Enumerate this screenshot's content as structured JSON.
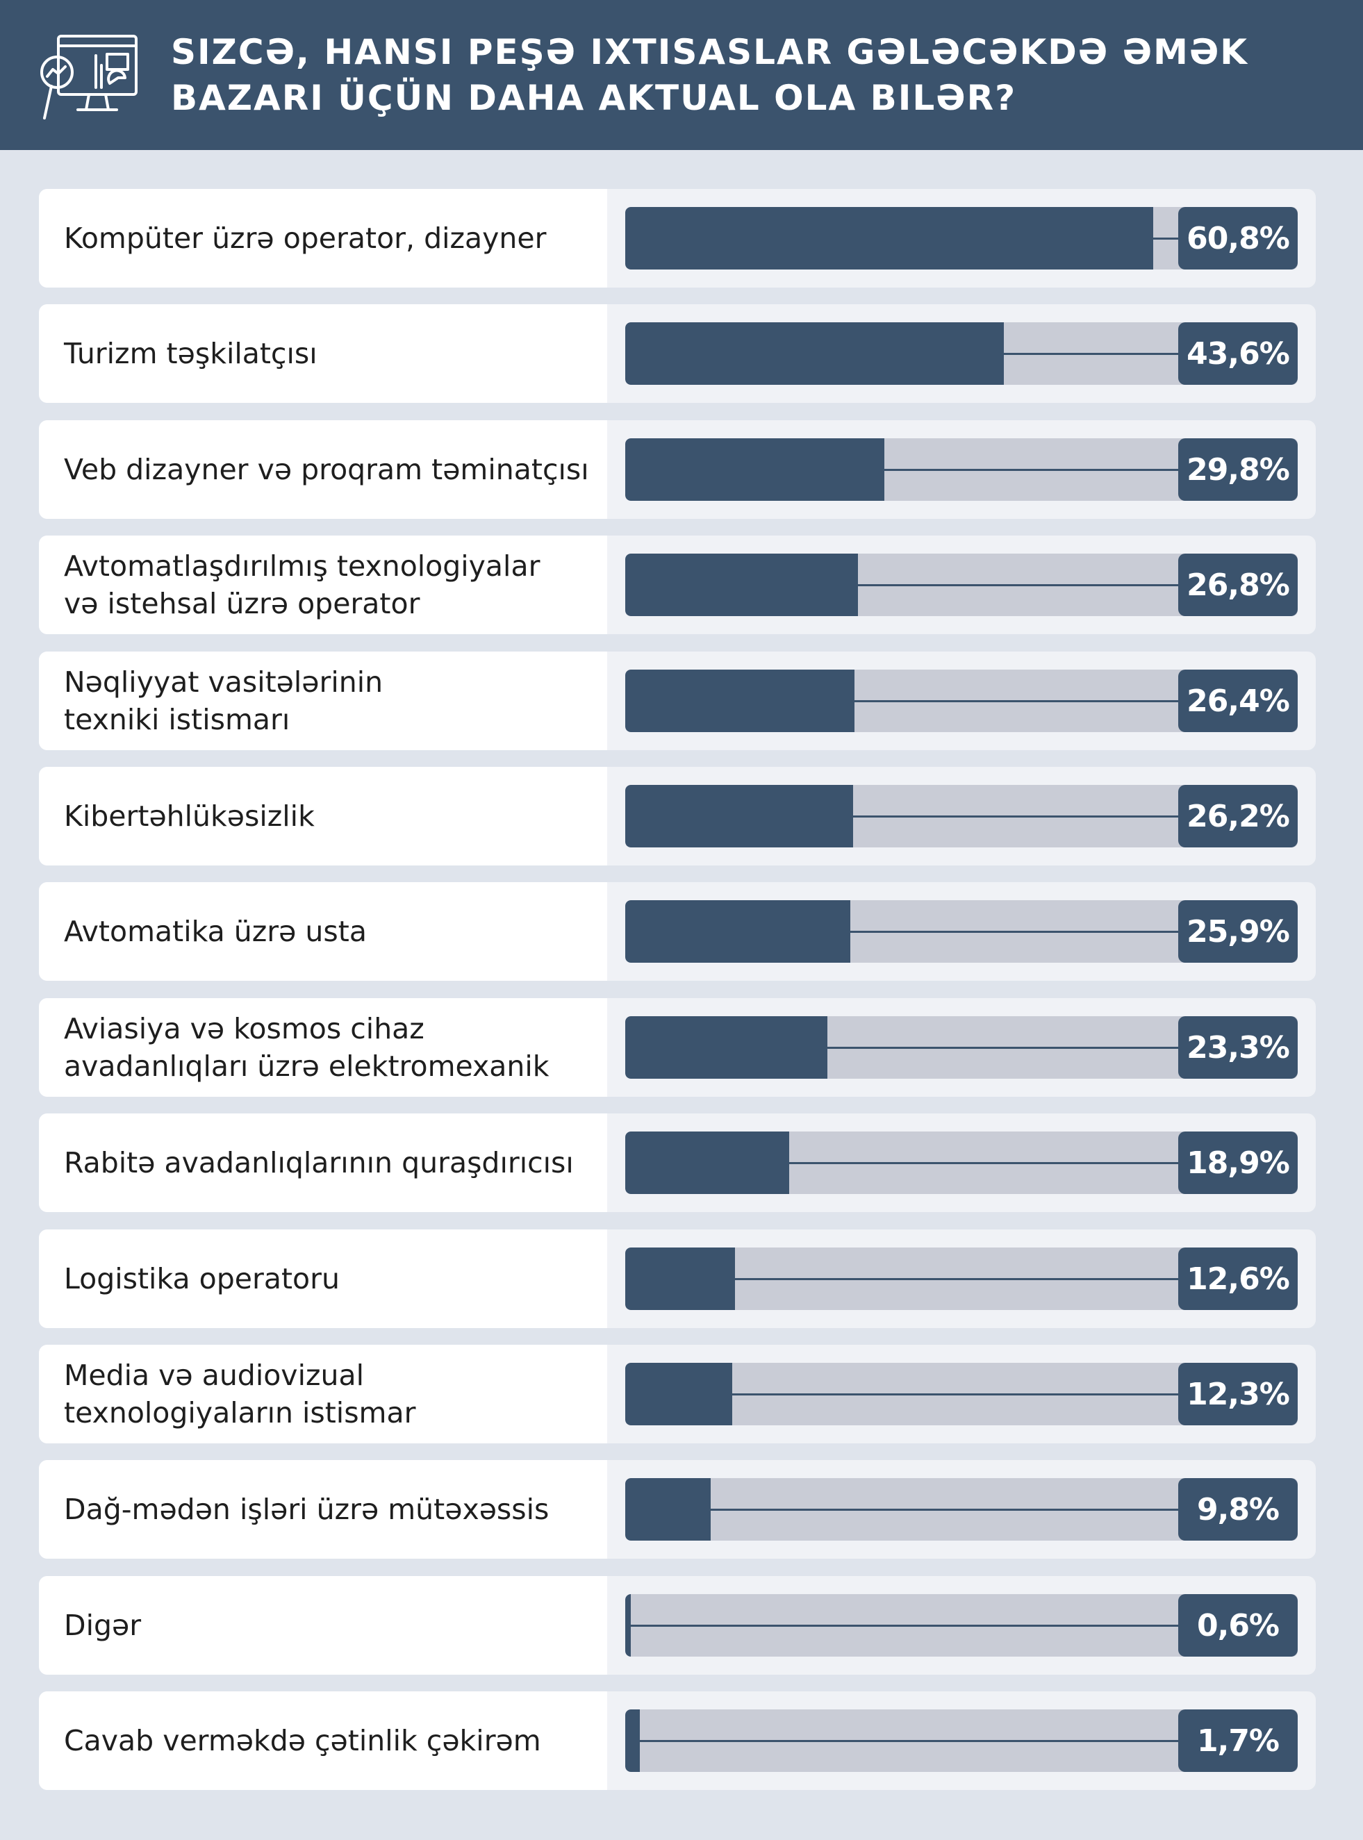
{
  "header": {
    "title_lines": [
      "Sizcə, hansı peşə ixtisaslar gələcəkdə əmək",
      "bazarı üçün daha aktual ola bilər?"
    ],
    "icon": "monitor-analytics-magnifier-icon"
  },
  "colors": {
    "header_bg": "#3b536d",
    "bar_fill": "#3b536d",
    "bar_track": "#c9ccd6",
    "page_bg": "#dfe4ec"
  },
  "chart_data": {
    "type": "bar",
    "orientation": "horizontal",
    "title": "Sizcə, hansı peşə ixtisaslar gələcəkdə əmək bazarı üçün daha aktual ola bilər?",
    "xlim": [
      0,
      100
    ],
    "unit": "%",
    "categories": [
      [
        "Kompüter üzrə operator, dizayner"
      ],
      [
        "Turizm təşkilatçısı"
      ],
      [
        "Veb dizayner və proqram təminatçısı"
      ],
      [
        "Avtomatlaşdırılmış texnologiyalar",
        "və istehsal üzrə operator"
      ],
      [
        "Nəqliyyat vasitələrinin",
        "texniki istismarı"
      ],
      [
        "Kibertəhlükəsizlik"
      ],
      [
        "Avtomatika üzrə usta"
      ],
      [
        "Aviasiya və kosmos cihaz",
        "avadanlıqları üzrə elektromexanik"
      ],
      [
        "Rabitə avadanlıqlarının quraşdırıcısı"
      ],
      [
        "Logistika operatoru"
      ],
      [
        "Media və audiovizual",
        "texnologiyaların istismar"
      ],
      [
        "Dağ-mədən işləri üzrə mütəxəssis"
      ],
      [
        "Digər"
      ],
      [
        "Cavab verməkdə çətinlik çəkirəm"
      ]
    ],
    "values": [
      60.8,
      43.6,
      29.8,
      26.8,
      26.4,
      26.2,
      25.9,
      23.3,
      18.9,
      12.6,
      12.3,
      9.8,
      0.6,
      1.7
    ],
    "value_labels": [
      "60,8%",
      "43,6%",
      "29,8%",
      "26,8%",
      "26,4%",
      "26,2%",
      "25,9%",
      "23,3%",
      "18,9%",
      "12,6%",
      "12,3%",
      "9,8%",
      "0,6%",
      "1,7%"
    ]
  }
}
